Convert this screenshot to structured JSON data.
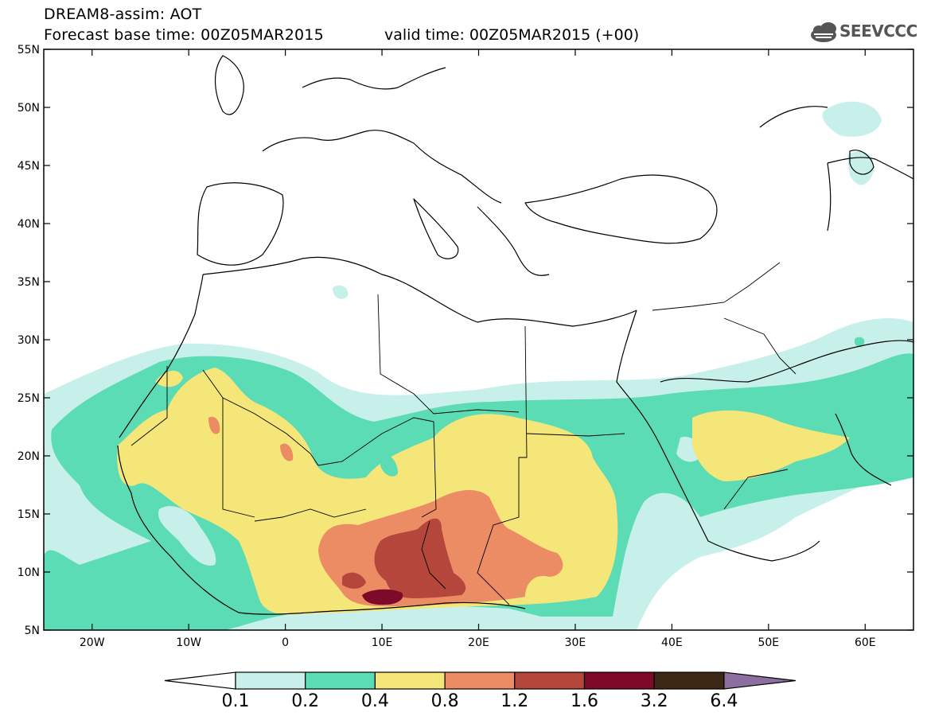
{
  "header": {
    "model_title": "DREAM8-assim: AOT",
    "forecast_base": "Forecast base time: 00Z05MAR2015",
    "valid_time": "valid time: 00Z05MAR2015 (+00)",
    "logo_text": "SEEVCCC",
    "logo_icon": "cloud-icon"
  },
  "map": {
    "lon_range": [
      -25,
      65
    ],
    "lat_range": [
      5,
      55
    ],
    "lat_ticks": [
      "55N",
      "50N",
      "45N",
      "40N",
      "35N",
      "30N",
      "25N",
      "20N",
      "15N",
      "10N",
      "5N"
    ],
    "lon_ticks": [
      "20W",
      "10W",
      "0",
      "10E",
      "20E",
      "30E",
      "40E",
      "50E",
      "60E"
    ],
    "variable": "AOT"
  },
  "colorbar": {
    "labels": [
      "0.1",
      "0.2",
      "0.4",
      "0.8",
      "1.2",
      "1.6",
      "3.2",
      "6.4"
    ],
    "colors": [
      "#c8f0ea",
      "#5cdcb4",
      "#f5e67a",
      "#eb8c64",
      "#b4463c",
      "#7d0a28",
      "#3c2814",
      "#8c6ea0"
    ],
    "under_color": "#ffffff"
  }
}
